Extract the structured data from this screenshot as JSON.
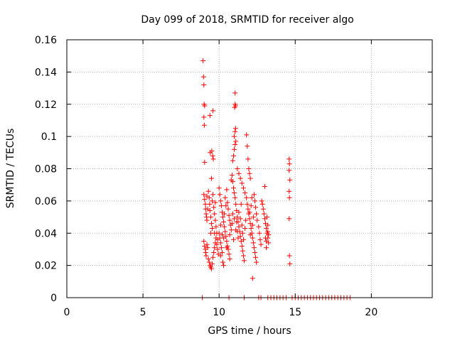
{
  "chart_data": {
    "type": "scatter",
    "title": "Day 099 of 2018, SRMTID for receiver algo",
    "xlabel": "GPS time / hours",
    "ylabel": "SRMTID / TECUs",
    "xlim": [
      0,
      24
    ],
    "ylim": [
      0,
      0.16
    ],
    "xticks": [
      "0",
      "5",
      "10",
      "15",
      "20"
    ],
    "yticks": [
      "0",
      "0.02",
      "0.04",
      "0.06",
      "0.08",
      "0.1",
      "0.12",
      "0.14",
      "0.16"
    ],
    "grid": true,
    "marker": "+",
    "color": "#ff0000",
    "series": [
      {
        "points": [
          [
            8.95,
            0.147
          ],
          [
            8.98,
            0.137
          ],
          [
            9.0,
            0.132
          ],
          [
            9.02,
            0.12
          ],
          [
            9.05,
            0.119
          ],
          [
            9.0,
            0.112
          ],
          [
            9.03,
            0.107
          ],
          [
            9.05,
            0.084
          ],
          [
            9.4,
            0.113
          ],
          [
            9.6,
            0.116
          ],
          [
            9.42,
            0.09
          ],
          [
            9.52,
            0.091
          ],
          [
            9.58,
            0.088
          ],
          [
            9.62,
            0.086
          ],
          [
            9.5,
            0.074
          ],
          [
            9.0,
            0.064
          ],
          [
            9.05,
            0.061
          ],
          [
            9.1,
            0.058
          ],
          [
            9.12,
            0.055
          ],
          [
            9.15,
            0.052
          ],
          [
            9.18,
            0.05
          ],
          [
            9.2,
            0.048
          ],
          [
            9.3,
            0.066
          ],
          [
            9.35,
            0.062
          ],
          [
            9.38,
            0.058
          ],
          [
            9.4,
            0.054
          ],
          [
            9.45,
            0.05
          ],
          [
            9.5,
            0.046
          ],
          [
            9.55,
            0.06
          ],
          [
            9.6,
            0.064
          ],
          [
            9.65,
            0.056
          ],
          [
            9.7,
            0.052
          ],
          [
            9.75,
            0.048
          ],
          [
            9.8,
            0.044
          ],
          [
            9.85,
            0.04
          ],
          [
            9.9,
            0.036
          ],
          [
            9.0,
            0.035
          ],
          [
            9.05,
            0.032
          ],
          [
            9.1,
            0.03
          ],
          [
            9.12,
            0.028
          ],
          [
            9.15,
            0.026
          ],
          [
            9.2,
            0.033
          ],
          [
            9.25,
            0.031
          ],
          [
            9.3,
            0.024
          ],
          [
            9.35,
            0.022
          ],
          [
            9.4,
            0.02
          ],
          [
            9.45,
            0.019
          ],
          [
            9.5,
            0.018
          ],
          [
            9.55,
            0.021
          ],
          [
            9.6,
            0.025
          ],
          [
            9.65,
            0.028
          ],
          [
            9.7,
            0.031
          ],
          [
            9.75,
            0.034
          ],
          [
            9.8,
            0.037
          ],
          [
            9.85,
            0.033
          ],
          [
            9.9,
            0.03
          ],
          [
            9.95,
            0.027
          ],
          [
            10.0,
            0.068
          ],
          [
            10.05,
            0.064
          ],
          [
            10.1,
            0.06
          ],
          [
            10.15,
            0.057
          ],
          [
            10.2,
            0.053
          ],
          [
            10.25,
            0.05
          ],
          [
            10.3,
            0.047
          ],
          [
            10.35,
            0.044
          ],
          [
            10.4,
            0.041
          ],
          [
            10.45,
            0.038
          ],
          [
            10.5,
            0.035
          ],
          [
            10.55,
            0.032
          ],
          [
            10.6,
            0.03
          ],
          [
            10.65,
            0.027
          ],
          [
            10.7,
            0.024
          ],
          [
            10.25,
            0.022
          ],
          [
            10.3,
            0.02
          ],
          [
            10.1,
            0.026
          ],
          [
            10.0,
            0.04
          ],
          [
            10.05,
            0.037
          ],
          [
            10.1,
            0.034
          ],
          [
            10.15,
            0.031
          ],
          [
            10.2,
            0.028
          ],
          [
            10.4,
            0.062
          ],
          [
            10.5,
            0.067
          ],
          [
            10.55,
            0.059
          ],
          [
            10.6,
            0.055
          ],
          [
            10.65,
            0.051
          ],
          [
            10.7,
            0.048
          ],
          [
            10.75,
            0.045
          ],
          [
            10.8,
            0.073
          ],
          [
            10.85,
            0.076
          ],
          [
            10.9,
            0.072
          ],
          [
            10.95,
            0.068
          ],
          [
            11.0,
            0.065
          ],
          [
            11.05,
            0.062
          ],
          [
            10.9,
            0.085
          ],
          [
            10.95,
            0.088
          ],
          [
            11.0,
            0.092
          ],
          [
            11.05,
            0.095
          ],
          [
            11.0,
            0.1
          ],
          [
            11.05,
            0.103
          ],
          [
            11.08,
            0.105
          ],
          [
            11.02,
            0.118
          ],
          [
            11.05,
            0.12
          ],
          [
            11.08,
            0.119
          ],
          [
            11.05,
            0.127
          ],
          [
            11.1,
            0.097
          ],
          [
            11.1,
            0.058
          ],
          [
            11.15,
            0.054
          ],
          [
            11.2,
            0.05
          ],
          [
            11.25,
            0.047
          ],
          [
            11.3,
            0.044
          ],
          [
            11.35,
            0.041
          ],
          [
            11.4,
            0.038
          ],
          [
            11.45,
            0.035
          ],
          [
            11.5,
            0.032
          ],
          [
            11.55,
            0.029
          ],
          [
            11.6,
            0.026
          ],
          [
            11.65,
            0.023
          ],
          [
            11.2,
            0.08
          ],
          [
            11.3,
            0.077
          ],
          [
            11.4,
            0.074
          ],
          [
            11.5,
            0.071
          ],
          [
            11.6,
            0.068
          ],
          [
            11.7,
            0.065
          ],
          [
            11.8,
            0.101
          ],
          [
            11.85,
            0.094
          ],
          [
            11.9,
            0.086
          ],
          [
            11.95,
            0.08
          ],
          [
            12.0,
            0.077
          ],
          [
            12.05,
            0.074
          ],
          [
            11.8,
            0.062
          ],
          [
            11.85,
            0.058
          ],
          [
            11.9,
            0.055
          ],
          [
            11.95,
            0.052
          ],
          [
            12.0,
            0.049
          ],
          [
            12.05,
            0.046
          ],
          [
            12.1,
            0.043
          ],
          [
            12.15,
            0.04
          ],
          [
            12.2,
            0.037
          ],
          [
            12.25,
            0.034
          ],
          [
            12.3,
            0.031
          ],
          [
            12.35,
            0.028
          ],
          [
            12.4,
            0.025
          ],
          [
            12.45,
            0.022
          ],
          [
            12.2,
            0.012
          ],
          [
            12.3,
            0.064
          ],
          [
            12.35,
            0.06
          ],
          [
            12.4,
            0.056
          ],
          [
            12.45,
            0.052
          ],
          [
            12.5,
            0.048
          ],
          [
            12.6,
            0.044
          ],
          [
            12.65,
            0.04
          ],
          [
            12.7,
            0.036
          ],
          [
            12.75,
            0.033
          ],
          [
            12.8,
            0.06
          ],
          [
            12.85,
            0.058
          ],
          [
            12.9,
            0.055
          ],
          [
            12.95,
            0.052
          ],
          [
            13.0,
            0.049
          ],
          [
            13.05,
            0.046
          ],
          [
            13.1,
            0.043
          ],
          [
            13.15,
            0.04
          ],
          [
            13.2,
            0.037
          ],
          [
            13.25,
            0.034
          ],
          [
            13.0,
            0.069
          ],
          [
            13.1,
            0.031
          ],
          [
            13.05,
            0.037
          ],
          [
            13.15,
            0.05
          ],
          [
            13.2,
            0.045
          ],
          [
            13.25,
            0.039
          ],
          [
            13.1,
            0.035
          ],
          [
            13.2,
            0.041
          ],
          [
            9.2,
            0.063
          ],
          [
            9.25,
            0.055
          ],
          [
            9.45,
            0.04
          ],
          [
            9.55,
            0.043
          ],
          [
            9.7,
            0.04
          ],
          [
            9.75,
            0.059
          ],
          [
            10.1,
            0.045
          ],
          [
            10.2,
            0.039
          ],
          [
            10.3,
            0.037
          ],
          [
            10.35,
            0.052
          ],
          [
            10.45,
            0.057
          ],
          [
            10.5,
            0.031
          ],
          [
            10.7,
            0.039
          ],
          [
            10.8,
            0.042
          ],
          [
            10.85,
            0.046
          ],
          [
            10.9,
            0.052
          ],
          [
            10.95,
            0.036
          ],
          [
            11.0,
            0.049
          ],
          [
            11.1,
            0.042
          ],
          [
            11.15,
            0.047
          ],
          [
            11.2,
            0.041
          ],
          [
            11.25,
            0.037
          ],
          [
            11.3,
            0.053
          ],
          [
            11.4,
            0.049
          ],
          [
            11.45,
            0.058
          ],
          [
            11.5,
            0.045
          ],
          [
            11.55,
            0.04
          ],
          [
            11.6,
            0.036
          ],
          [
            11.7,
            0.043
          ],
          [
            11.75,
            0.048
          ],
          [
            12.0,
            0.053
          ],
          [
            12.05,
            0.039
          ],
          [
            12.1,
            0.057
          ],
          [
            12.15,
            0.062
          ],
          [
            12.2,
            0.045
          ],
          [
            12.25,
            0.05
          ],
          [
            14.6,
            0.086
          ],
          [
            14.62,
            0.083
          ],
          [
            14.6,
            0.079
          ],
          [
            14.65,
            0.073
          ],
          [
            14.6,
            0.066
          ],
          [
            14.62,
            0.062
          ],
          [
            14.6,
            0.049
          ],
          [
            14.62,
            0.026
          ],
          [
            14.65,
            0.021
          ],
          [
            8.9,
            0.0
          ],
          [
            10.65,
            0.0
          ],
          [
            11.65,
            0.0
          ],
          [
            12.6,
            0.0
          ],
          [
            12.75,
            0.0
          ],
          [
            13.2,
            0.0
          ],
          [
            13.4,
            0.0
          ],
          [
            13.6,
            0.0
          ],
          [
            13.8,
            0.0
          ],
          [
            14.0,
            0.0
          ],
          [
            14.2,
            0.0
          ],
          [
            14.4,
            0.0
          ],
          [
            14.8,
            0.0
          ],
          [
            15.0,
            0.0
          ],
          [
            15.2,
            0.0
          ],
          [
            15.4,
            0.0
          ],
          [
            15.6,
            0.0
          ],
          [
            15.8,
            0.0
          ],
          [
            16.0,
            0.0
          ],
          [
            16.2,
            0.0
          ],
          [
            16.4,
            0.0
          ],
          [
            16.6,
            0.0
          ],
          [
            16.8,
            0.0
          ],
          [
            17.0,
            0.0
          ],
          [
            17.2,
            0.0
          ],
          [
            17.4,
            0.0
          ],
          [
            17.6,
            0.0
          ],
          [
            17.8,
            0.0
          ],
          [
            18.0,
            0.0
          ],
          [
            18.2,
            0.0
          ],
          [
            18.4,
            0.0
          ],
          [
            18.6,
            0.0
          ]
        ]
      }
    ]
  }
}
